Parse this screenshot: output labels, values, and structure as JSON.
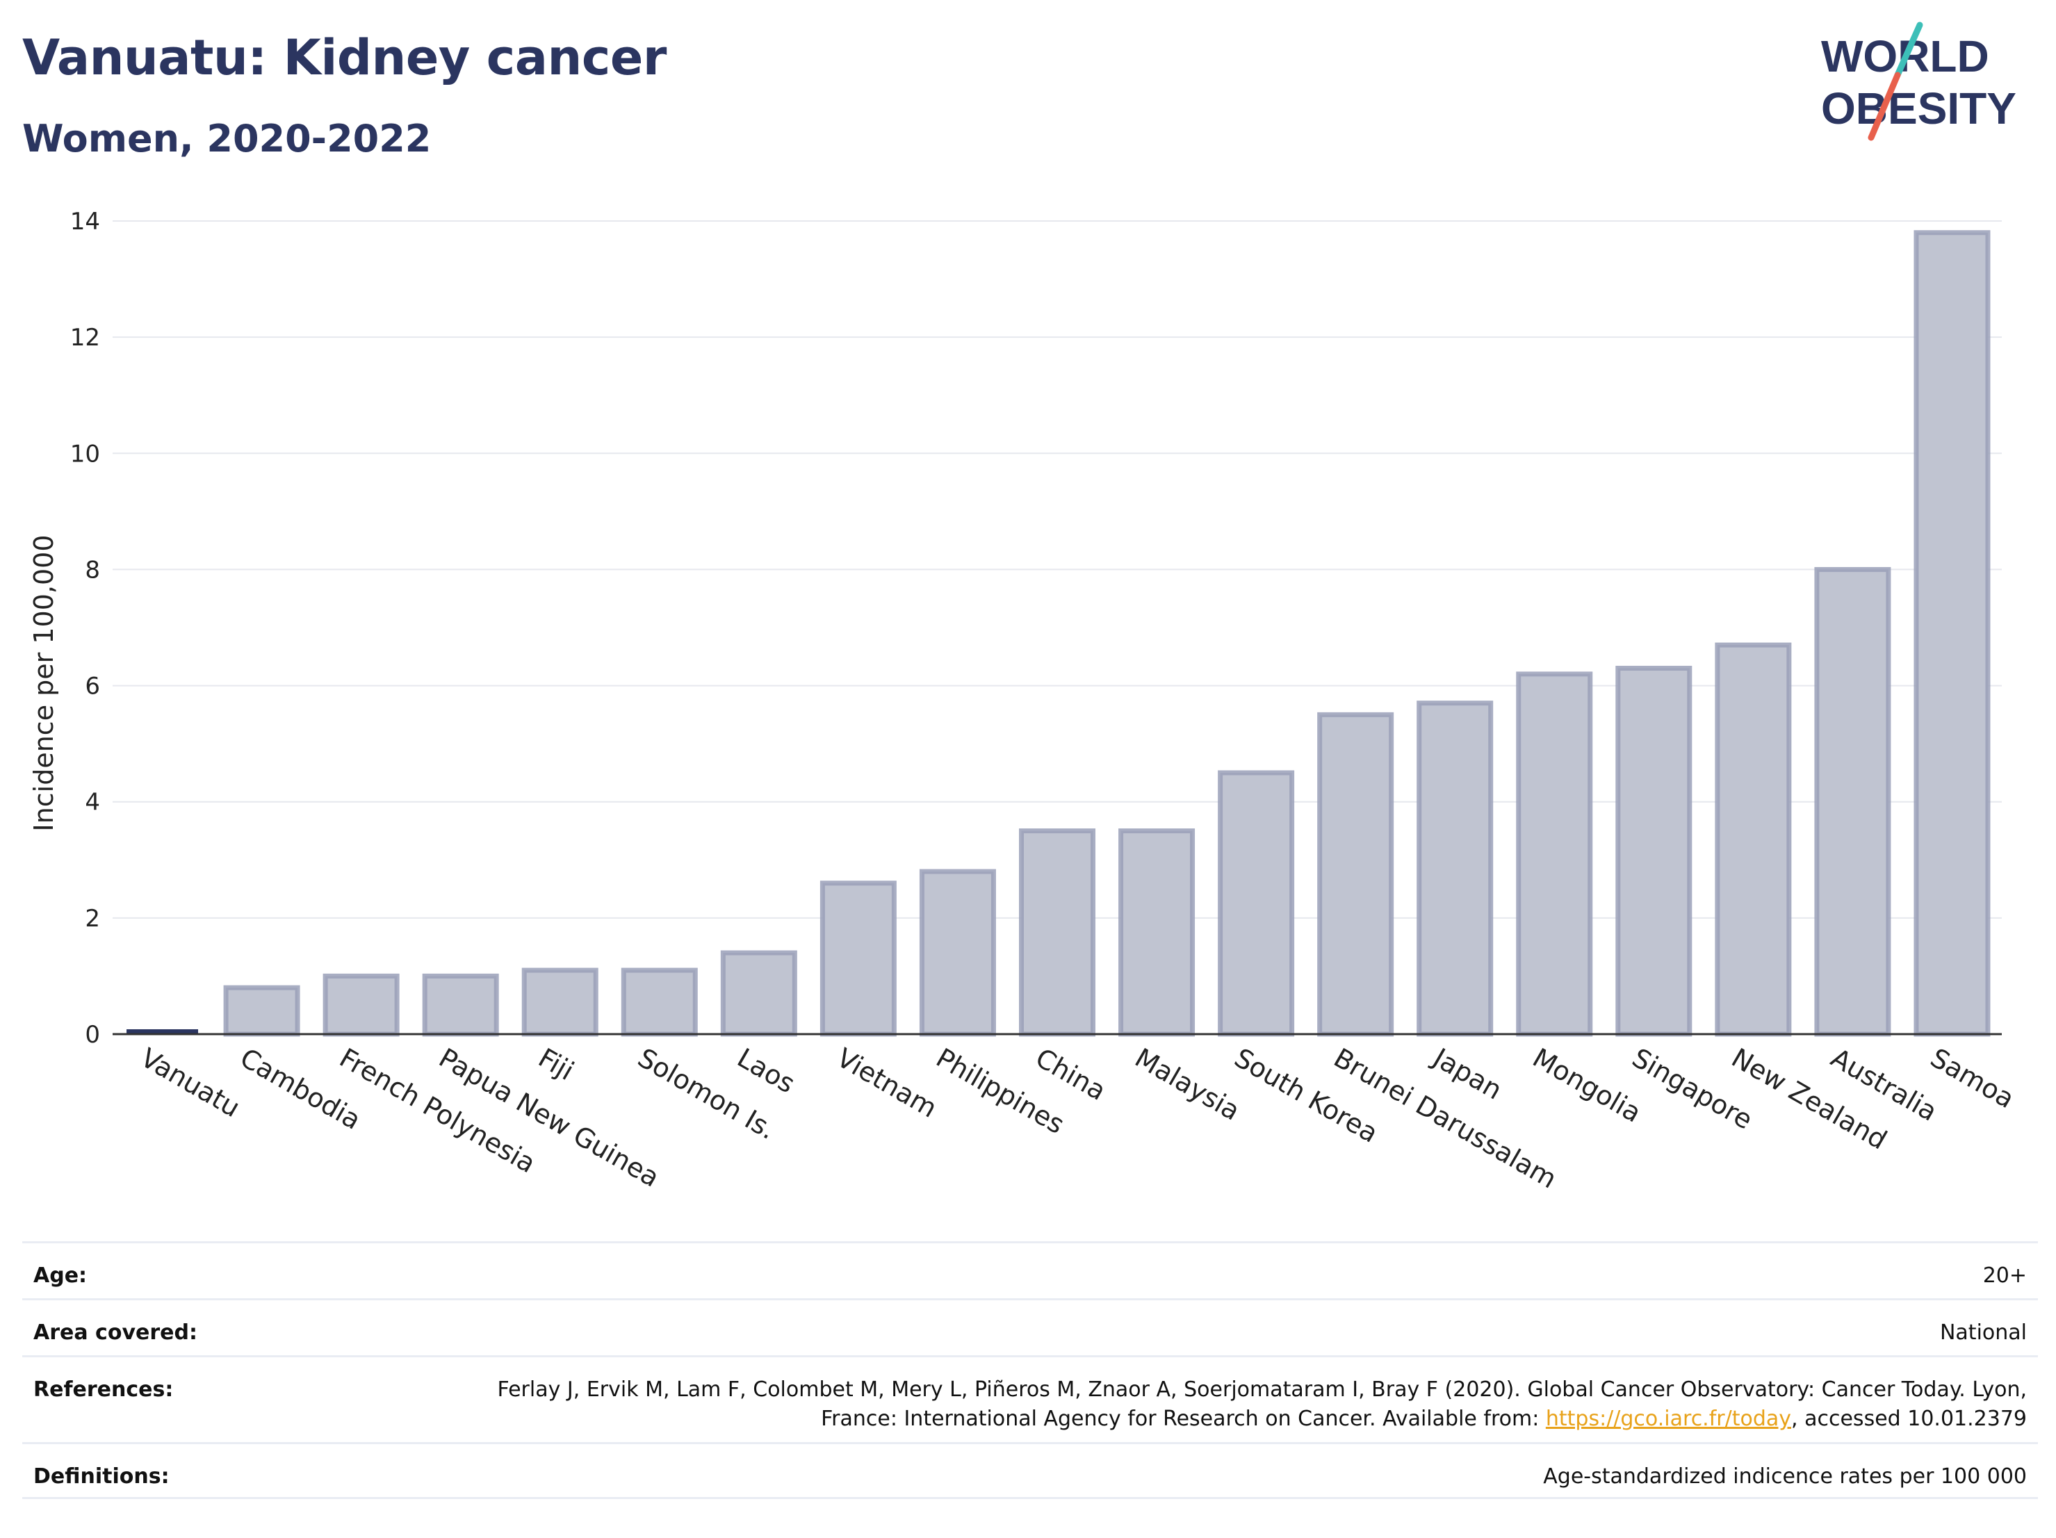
{
  "header": {
    "title": "Vanuatu: Kidney cancer",
    "subtitle": "Women, 2020-2022",
    "logo_line1": "WORLD",
    "logo_line2": "OBESITY"
  },
  "colors": {
    "title": "#2b3560",
    "bar_fill": "#c0c4d1",
    "bar_stroke": "#9aa0b8",
    "highlight_bar": "#2b3560",
    "link": "#e8a21a",
    "logo_teal": "#3dbfb8",
    "logo_red": "#e8604c"
  },
  "chart_data": {
    "type": "bar",
    "title": "Vanuatu: Kidney cancer",
    "subtitle": "Women, 2020-2022",
    "ylabel": "Incidence per 100,000",
    "xlabel": "",
    "ylim": [
      0,
      14
    ],
    "yticks": [
      0,
      2,
      4,
      6,
      8,
      10,
      12,
      14
    ],
    "grid": true,
    "highlight": "Vanuatu",
    "categories": [
      "Vanuatu",
      "Cambodia",
      "French Polynesia",
      "Papua New Guinea",
      "Fiji",
      "Solomon Is.",
      "Laos",
      "Vietnam",
      "Philippines",
      "China",
      "Malaysia",
      "South Korea",
      "Brunei Darussalam",
      "Japan",
      "Mongolia",
      "Singapore",
      "New Zealand",
      "Australia",
      "Samoa"
    ],
    "values": [
      0,
      0.8,
      1.0,
      1.0,
      1.1,
      1.1,
      1.4,
      2.6,
      2.8,
      3.5,
      3.5,
      4.5,
      5.5,
      5.7,
      6.2,
      6.3,
      6.7,
      8.0,
      13.8
    ]
  },
  "details": {
    "age_label": "Age:",
    "age_value": "20+",
    "area_label": "Area covered:",
    "area_value": "National",
    "references_label": "References:",
    "references_text_1": "Ferlay J, Ervik M, Lam F, Colombet M, Mery L, Piñeros M, Znaor A, Soerjomataram I, Bray F (2020). Global Cancer Observatory: Cancer Today. Lyon, France: International Agency for Research on Cancer. Available from: ",
    "references_link": "https://gco.iarc.fr/today",
    "references_text_2": ", accessed 10.01.2379",
    "definitions_label": "Definitions:",
    "definitions_value": "Age-standardized indicence rates per 100 000"
  }
}
